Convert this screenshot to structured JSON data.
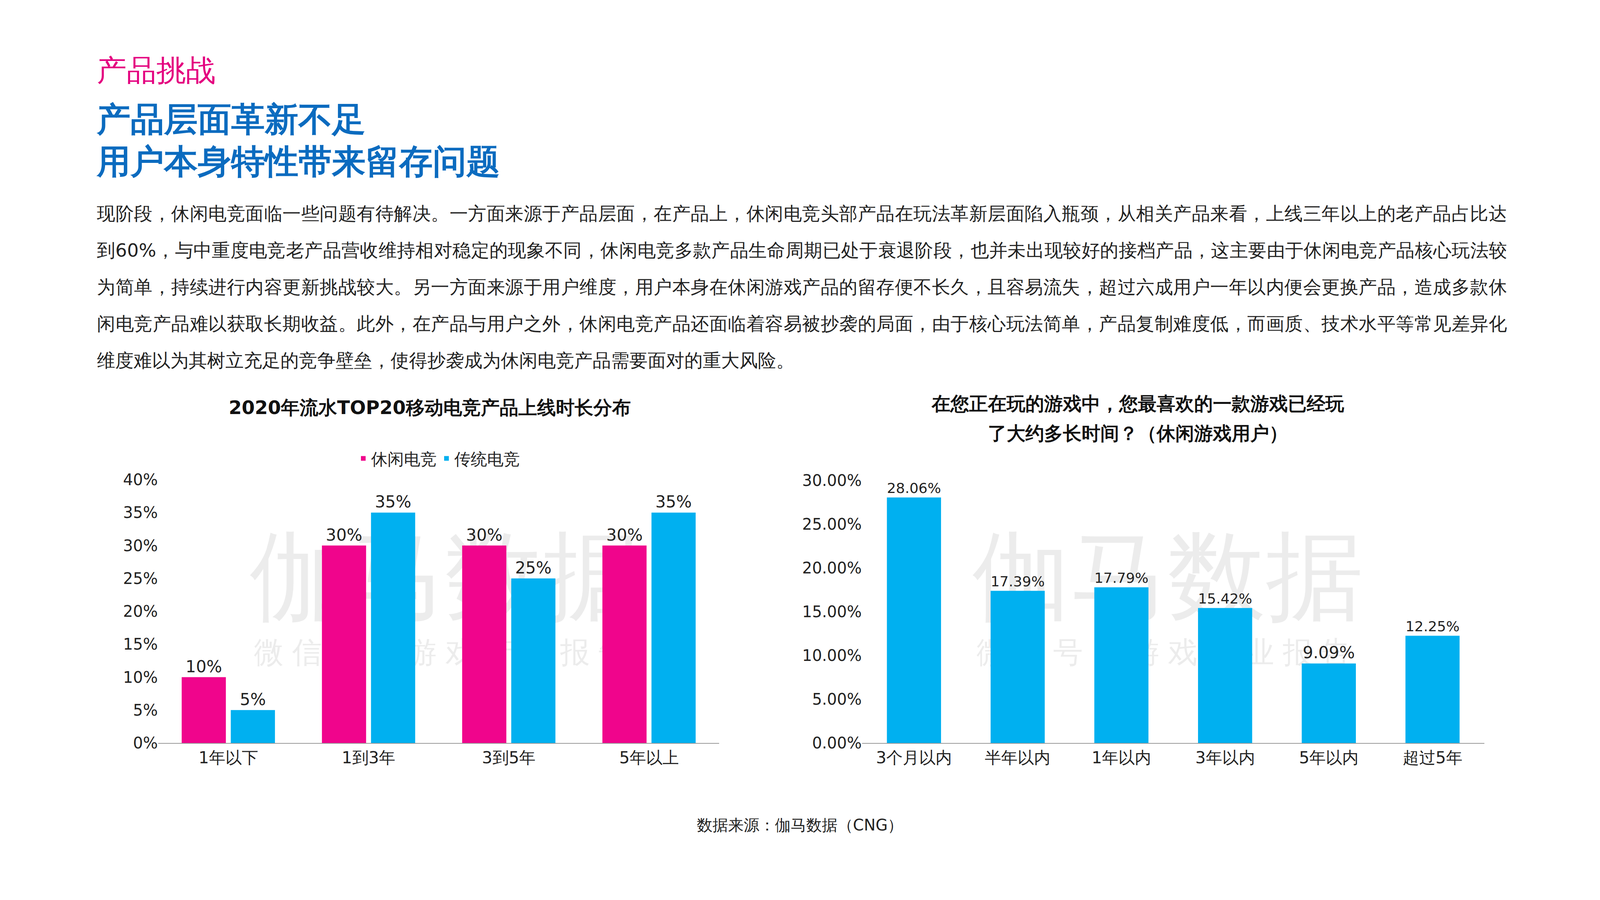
{
  "header": {
    "section": "产品挑战",
    "title_lines": [
      "产品层面革新不足",
      "用户本身特性带来留存问题"
    ]
  },
  "paragraph": "现阶段，休闲电竞面临一些问题有待解决。一方面来源于产品层面，在产品上，休闲电竞头部产品在玩法革新层面陷入瓶颈，从相关产品来看，上线三年以上的老产品占比达到60%，与中重度电竞老产品营收维持相对稳定的现象不同，休闲电竞多款产品生命周期已处于衰退阶段，也并未出现较好的接档产品，这主要由于休闲电竞产品核心玩法较为简单，持续进行内容更新挑战较大。另一方面来源于用户维度，用户本身在休闲游戏产品的留存便不长久，且容易流失，超过六成用户一年以内便会更换产品，造成多款休闲电竞产品难以获取长期收益。此外，在产品与用户之外，休闲电竞产品还面临着容易被抄袭的局面，由于核心玩法简单，产品复制难度低，而画质、技术水平等常见差异化维度难以为其树立充足的竞争壁垒，使得抄袭成为休闲电竞产品需要面对的重大风险。",
  "watermark": {
    "text": "伽马数据",
    "subtext": "微信号：游戏产业报告"
  },
  "source": "数据来源：伽马数据（CNG）",
  "chart_data": [
    {
      "type": "bar",
      "title": "2020年流水TOP20移动电竞产品上线时长分布",
      "categories": [
        "1年以下",
        "1到3年",
        "3到5年",
        "5年以上"
      ],
      "series": [
        {
          "name": "休闲电竞",
          "color": "#f0058c",
          "values": [
            10,
            30,
            30,
            30
          ],
          "value_labels": [
            "10%",
            "30%",
            "30%",
            "30%"
          ]
        },
        {
          "name": "传统电竞",
          "color": "#00b0f0",
          "values": [
            5,
            35,
            25,
            35
          ],
          "value_labels": [
            "5%",
            "35%",
            "25%",
            "35%"
          ]
        }
      ],
      "ylim": [
        0,
        40
      ],
      "yticks": [
        {
          "value": 0,
          "label": "0%"
        },
        {
          "value": 5,
          "label": "5%"
        },
        {
          "value": 10,
          "label": "10%"
        },
        {
          "value": 15,
          "label": "15%"
        },
        {
          "value": 20,
          "label": "20%"
        },
        {
          "value": 25,
          "label": "25%"
        },
        {
          "value": 30,
          "label": "30%"
        },
        {
          "value": 35,
          "label": "35%"
        },
        {
          "value": 40,
          "label": "40%"
        }
      ],
      "grid": false,
      "legend": "top",
      "data_labels": true
    },
    {
      "type": "bar",
      "title": "在您正在玩的游戏中，您最喜欢的一款游戏已经玩了大约多长时间？（休闲游戏用户）",
      "categories": [
        "3个月以内",
        "半年以内",
        "1年以内",
        "3年以内",
        "5年以内",
        "超过5年"
      ],
      "values": [
        28.06,
        17.39,
        17.79,
        15.42,
        9.09,
        12.25
      ],
      "value_labels": [
        "28.06%",
        "17.39%",
        "17.79%",
        "15.42%",
        "9.09%",
        "12.25%"
      ],
      "color": "#00b0f0",
      "ylim": [
        0,
        30
      ],
      "yticks": [
        {
          "value": 0,
          "label": "0.00%"
        },
        {
          "value": 5,
          "label": "5.00%"
        },
        {
          "value": 10,
          "label": "10.00%"
        },
        {
          "value": 15,
          "label": "15.00%"
        },
        {
          "value": 20,
          "label": "20.00%"
        },
        {
          "value": 25,
          "label": "25.00%"
        },
        {
          "value": 30,
          "label": "30.00%"
        }
      ],
      "grid": false,
      "data_labels": true
    }
  ]
}
